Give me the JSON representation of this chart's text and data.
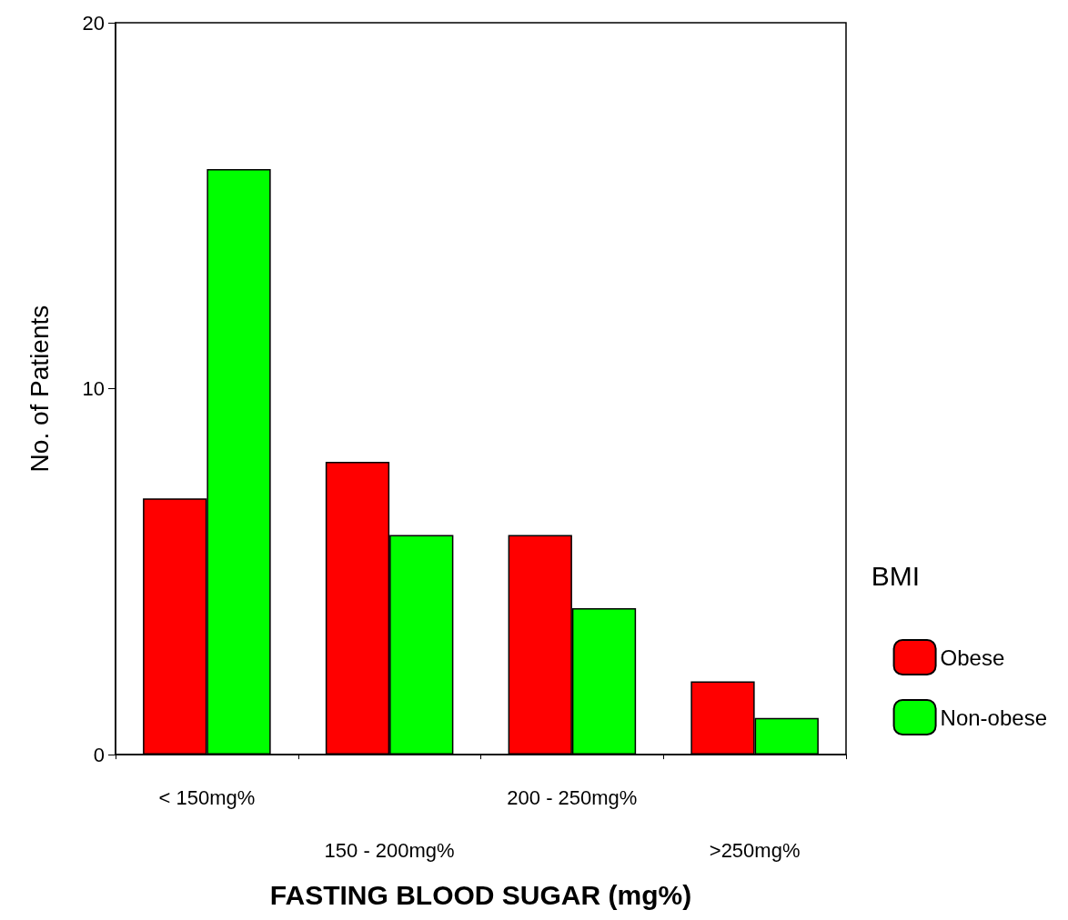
{
  "chart_data": {
    "type": "bar",
    "xlabel": "FASTING BLOOD SUGAR (mg%)",
    "ylabel": "No. of Patients",
    "legend_title": "BMI",
    "categories": [
      "< 150mg%",
      "150 - 200mg%",
      "200 - 250mg%",
      ">250mg%"
    ],
    "series": [
      {
        "name": "Obese",
        "color": "#ff0000",
        "values": [
          7,
          8,
          6,
          2
        ]
      },
      {
        "name": "Non-obese",
        "color": "#00ff00",
        "values": [
          16,
          6,
          4,
          1
        ]
      }
    ],
    "ylim": [
      0,
      20
    ],
    "yticks": [
      0,
      10,
      20
    ],
    "grid": false,
    "legend": "right"
  }
}
